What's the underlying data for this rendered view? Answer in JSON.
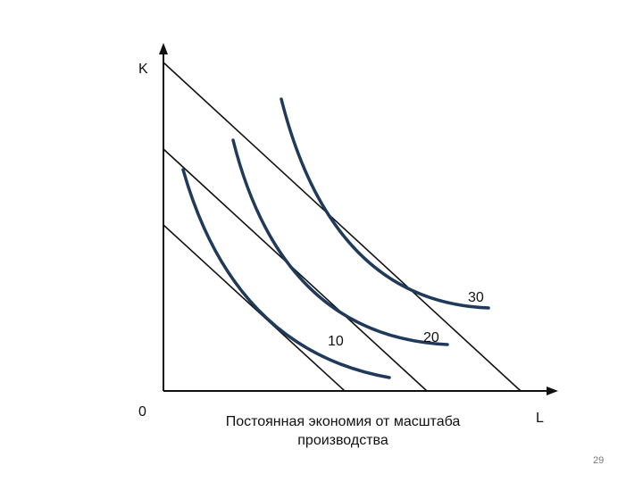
{
  "diagram": {
    "axes": {
      "y_label": "K",
      "x_label": "L",
      "origin_label": "0"
    },
    "isoquants": [
      {
        "label": "10"
      },
      {
        "label": "20"
      },
      {
        "label": "30"
      }
    ],
    "isocost_count": 3,
    "caption_lines": [
      "Постоянная экономия от масштаба",
      "производства"
    ],
    "colors": {
      "isoquant": "#1f3a5a",
      "isocost": "#111111",
      "axis": "#111111"
    }
  },
  "page": {
    "number": "29"
  }
}
